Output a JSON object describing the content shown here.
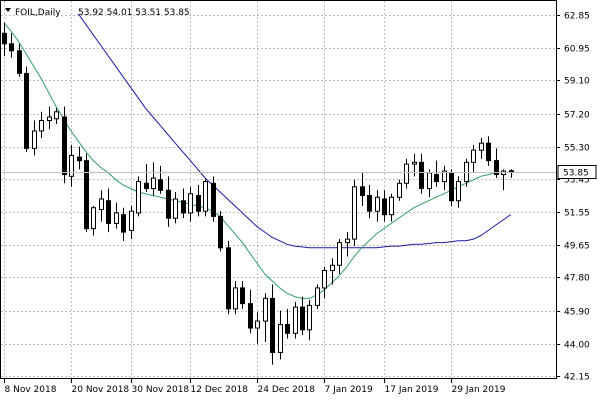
{
  "header": {
    "symbol_period": "FOIL,Daily",
    "ohlc": "53.92 54.01 53.51 53.85"
  },
  "colors": {
    "background": "#ffffff",
    "grid": "#c0c0c0",
    "candle": "#000000",
    "bull_fill": "#ffffff",
    "bear_fill": "#000000",
    "ma_fast": "#2f9e6a",
    "ma_slow": "#1a1aa8",
    "price_tag_bg": "#ffffff",
    "axis": "#000000"
  },
  "chart_data": {
    "type": "candlestick",
    "grid": true,
    "price_axis": [
      "62.85",
      "60.95",
      "59.10",
      "57.20",
      "55.30",
      "53.45",
      "51.55",
      "49.65",
      "47.80",
      "45.90",
      "44.00",
      "42.15"
    ],
    "current_price": "53.85",
    "x_labels": [
      "8 Nov 2018",
      "20 Nov 2018",
      "30 Nov 2018",
      "12 Dec 2018",
      "24 Dec 2018",
      "7 Jan 2019",
      "17 Jan 2019",
      "29 Jan 2019"
    ],
    "ylim": [
      42.15,
      62.85
    ],
    "candles": [
      [
        61.8,
        62.4,
        60.5,
        61.2
      ],
      [
        61.2,
        61.8,
        60.4,
        60.8
      ],
      [
        60.8,
        61.2,
        59.3,
        59.5
      ],
      [
        59.5,
        59.9,
        55.0,
        55.2
      ],
      [
        55.2,
        56.8,
        54.8,
        56.2
      ],
      [
        56.2,
        57.3,
        55.8,
        56.8
      ],
      [
        56.8,
        57.6,
        56.3,
        57.0
      ],
      [
        56.9,
        57.5,
        56.6,
        57.3
      ],
      [
        57.0,
        57.6,
        53.2,
        53.7
      ],
      [
        53.6,
        55.4,
        53.0,
        54.8
      ],
      [
        54.7,
        55.3,
        54.0,
        54.5
      ],
      [
        54.5,
        54.9,
        50.4,
        50.6
      ],
      [
        50.6,
        51.9,
        50.2,
        51.8
      ],
      [
        51.7,
        52.8,
        51.0,
        52.3
      ],
      [
        52.2,
        52.9,
        50.4,
        50.9
      ],
      [
        50.9,
        52.1,
        50.6,
        51.5
      ],
      [
        51.4,
        51.8,
        49.9,
        50.4
      ],
      [
        50.5,
        51.9,
        50.0,
        51.6
      ],
      [
        51.5,
        53.6,
        51.3,
        53.3
      ],
      [
        53.2,
        54.3,
        52.7,
        52.9
      ],
      [
        52.9,
        54.4,
        52.5,
        53.5
      ],
      [
        53.4,
        54.2,
        52.6,
        52.8
      ],
      [
        52.8,
        53.6,
        50.7,
        51.2
      ],
      [
        51.2,
        52.7,
        50.9,
        52.3
      ],
      [
        52.2,
        52.9,
        51.2,
        51.5
      ],
      [
        51.5,
        53.0,
        51.0,
        52.6
      ],
      [
        52.5,
        53.1,
        51.3,
        51.6
      ],
      [
        51.6,
        53.5,
        51.3,
        53.3
      ],
      [
        53.2,
        53.6,
        51.0,
        51.3
      ],
      [
        51.3,
        51.6,
        49.3,
        49.5
      ],
      [
        49.5,
        49.9,
        45.7,
        46.0
      ],
      [
        46.0,
        47.6,
        45.7,
        47.2
      ],
      [
        47.2,
        47.6,
        46.0,
        46.3
      ],
      [
        46.3,
        47.1,
        44.6,
        44.9
      ],
      [
        44.9,
        45.8,
        44.0,
        45.3
      ],
      [
        45.3,
        46.9,
        44.1,
        46.6
      ],
      [
        46.6,
        47.4,
        42.8,
        43.5
      ],
      [
        43.5,
        45.9,
        43.1,
        45.1
      ],
      [
        45.1,
        46.0,
        44.3,
        44.6
      ],
      [
        44.6,
        46.4,
        44.3,
        46.1
      ],
      [
        46.1,
        46.7,
        44.5,
        44.8
      ],
      [
        44.8,
        46.5,
        44.2,
        46.2
      ],
      [
        46.2,
        47.4,
        46.0,
        47.2
      ],
      [
        47.2,
        48.4,
        46.6,
        48.2
      ],
      [
        48.2,
        48.9,
        47.4,
        48.5
      ],
      [
        48.5,
        50.0,
        48.0,
        49.8
      ],
      [
        49.8,
        50.4,
        49.0,
        50.0
      ],
      [
        50.0,
        53.4,
        49.6,
        53.0
      ],
      [
        53.0,
        53.8,
        51.9,
        52.5
      ],
      [
        52.5,
        53.1,
        51.2,
        51.6
      ],
      [
        51.6,
        52.8,
        51.0,
        52.4
      ],
      [
        52.3,
        52.8,
        51.0,
        51.4
      ],
      [
        51.4,
        52.6,
        51.0,
        52.4
      ],
      [
        52.4,
        53.4,
        52.2,
        53.2
      ],
      [
        53.2,
        54.6,
        52.9,
        54.3
      ],
      [
        54.3,
        54.9,
        53.6,
        54.4
      ],
      [
        54.4,
        54.9,
        52.6,
        52.9
      ],
      [
        52.9,
        54.0,
        52.4,
        53.8
      ],
      [
        53.7,
        54.5,
        53.0,
        53.3
      ],
      [
        53.3,
        54.2,
        52.8,
        53.9
      ],
      [
        53.8,
        54.0,
        51.9,
        52.2
      ],
      [
        52.2,
        53.6,
        51.8,
        53.3
      ],
      [
        53.3,
        54.6,
        53.0,
        54.4
      ],
      [
        54.4,
        55.4,
        53.8,
        55.1
      ],
      [
        55.1,
        55.8,
        54.6,
        55.5
      ],
      [
        55.5,
        55.9,
        54.2,
        54.5
      ],
      [
        54.5,
        55.2,
        53.5,
        53.7
      ],
      [
        53.7,
        54.0,
        52.8,
        53.9
      ],
      [
        53.92,
        54.01,
        53.51,
        53.85
      ]
    ],
    "ma_fast": [
      62.4,
      61.9,
      61.3,
      60.6,
      59.9,
      59.2,
      58.4,
      57.6,
      56.9,
      56.2,
      55.6,
      55.0,
      54.5,
      54.1,
      53.8,
      53.4,
      53.1,
      52.9,
      52.7,
      52.6,
      52.5,
      52.4,
      52.3,
      52.2,
      52.1,
      52.0,
      51.9,
      51.8,
      51.6,
      51.3,
      50.8,
      50.3,
      49.8,
      49.2,
      48.6,
      48.0,
      47.6,
      47.2,
      46.9,
      46.7,
      46.6,
      46.6,
      46.8,
      47.1,
      47.5,
      47.9,
      48.4,
      49.0,
      49.5,
      49.9,
      50.3,
      50.6,
      50.9,
      51.2,
      51.5,
      51.8,
      52.0,
      52.2,
      52.4,
      52.6,
      52.8,
      53.0,
      53.2,
      53.4,
      53.6,
      53.7,
      53.8,
      53.8,
      53.85
    ],
    "ma_slow": [
      null,
      null,
      null,
      null,
      null,
      null,
      null,
      null,
      null,
      null,
      62.9,
      62.3,
      61.7,
      61.1,
      60.5,
      59.9,
      59.3,
      58.7,
      58.1,
      57.5,
      57.0,
      56.5,
      56.0,
      55.5,
      55.0,
      54.5,
      54.0,
      53.5,
      53.1,
      52.7,
      52.3,
      51.9,
      51.5,
      51.1,
      50.7,
      50.4,
      50.1,
      49.9,
      49.7,
      49.6,
      49.55,
      49.5,
      49.5,
      49.5,
      49.5,
      49.5,
      49.5,
      49.5,
      49.5,
      49.5,
      49.5,
      49.55,
      49.6,
      49.6,
      49.65,
      49.7,
      49.7,
      49.75,
      49.8,
      49.8,
      49.85,
      49.9,
      49.9,
      50.0,
      50.2,
      50.5,
      50.8,
      51.1,
      51.4
    ]
  }
}
